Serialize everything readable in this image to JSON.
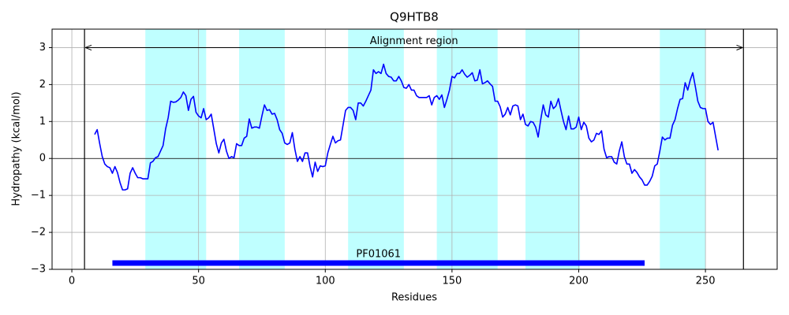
{
  "chart_data": {
    "type": "line",
    "title": "Q9HTB8",
    "xlabel": "Residues",
    "ylabel": "Hydropathy (kcal/mol)",
    "xlim": [
      -7.8,
      278.3
    ],
    "ylim": [
      -3,
      3.5
    ],
    "xticks": [
      0,
      50,
      100,
      150,
      200,
      250
    ],
    "yticks": [
      {
        "value": -3,
        "label": "−3"
      },
      {
        "value": -2,
        "label": "−2"
      },
      {
        "value": -1,
        "label": "−1"
      },
      0,
      1,
      2,
      3
    ],
    "grid": true,
    "color": "#0000ff",
    "region_color": "#bfffff",
    "hline": 0,
    "regions": [
      [
        29,
        53
      ],
      [
        66,
        84
      ],
      [
        109,
        131
      ],
      [
        144,
        168
      ],
      [
        179,
        200.5
      ],
      [
        232,
        250
      ]
    ],
    "alignment": {
      "label": "Alignment region",
      "start": 5,
      "end": 265,
      "y": 3
    },
    "domains": [
      {
        "label": "PF01061",
        "start": 16,
        "end": 226,
        "y": -2.83,
        "color": "#0000ff"
      }
    ],
    "x": [
      9,
      10,
      11,
      12,
      13,
      14,
      15,
      16,
      17,
      18,
      19,
      20,
      21,
      22,
      23,
      24,
      25,
      26,
      27,
      28,
      29,
      30,
      31,
      32,
      33,
      34,
      35,
      36,
      37,
      38,
      39,
      40,
      41,
      42,
      43,
      44,
      45,
      46,
      47,
      48,
      49,
      50,
      51,
      52,
      53,
      54,
      55,
      56,
      57,
      58,
      59,
      60,
      61,
      62,
      63,
      64,
      65,
      66,
      67,
      68,
      69,
      70,
      71,
      72,
      73,
      74,
      75,
      76,
      77,
      78,
      79,
      80,
      81,
      82,
      83,
      84,
      85,
      86,
      87,
      88,
      89,
      90,
      91,
      92,
      93,
      94,
      95,
      96,
      97,
      98,
      99,
      100,
      101,
      102,
      103,
      104,
      105,
      106,
      107,
      108,
      109,
      110,
      111,
      112,
      113,
      114,
      115,
      116,
      117,
      118,
      119,
      120,
      121,
      122,
      123,
      124,
      125,
      126,
      127,
      128,
      129,
      130,
      131,
      132,
      133,
      134,
      135,
      136,
      137,
      138,
      139,
      140,
      141,
      142,
      143,
      144,
      145,
      146,
      147,
      148,
      149,
      150,
      151,
      152,
      153,
      154,
      155,
      156,
      157,
      158,
      159,
      160,
      161,
      162,
      163,
      164,
      165,
      166,
      167,
      168,
      169,
      170,
      171,
      172,
      173,
      174,
      175,
      176,
      177,
      178,
      179,
      180,
      181,
      182,
      183,
      184,
      185,
      186,
      187,
      188,
      189,
      190,
      191,
      192,
      193,
      194,
      195,
      196,
      197,
      198,
      199,
      200,
      201,
      202,
      203,
      204,
      205,
      206,
      207,
      208,
      209,
      210,
      211,
      212,
      213,
      214,
      215,
      216,
      217,
      218,
      219,
      220,
      221,
      222,
      223,
      224,
      225,
      226,
      227,
      228,
      229,
      230,
      231,
      232,
      233,
      234,
      235,
      236,
      237,
      238,
      239,
      240,
      241,
      242,
      243,
      244,
      245,
      246,
      247,
      248,
      249,
      250,
      251,
      252,
      253,
      254,
      255
    ],
    "values": [
      0.65,
      0.78,
      0.4,
      0.05,
      -0.15,
      -0.22,
      -0.25,
      -0.4,
      -0.22,
      -0.38,
      -0.65,
      -0.85,
      -0.85,
      -0.82,
      -0.4,
      -0.25,
      -0.4,
      -0.52,
      -0.52,
      -0.55,
      -0.55,
      -0.55,
      -0.12,
      -0.08,
      0.02,
      0.05,
      0.2,
      0.35,
      0.8,
      1.1,
      1.55,
      1.52,
      1.53,
      1.58,
      1.65,
      1.8,
      1.7,
      1.3,
      1.6,
      1.68,
      1.25,
      1.15,
      1.1,
      1.35,
      1.05,
      1.1,
      1.2,
      0.8,
      0.4,
      0.15,
      0.42,
      0.52,
      0.2,
      0.0,
      0.05,
      0.02,
      0.4,
      0.35,
      0.35,
      0.55,
      0.6,
      1.07,
      0.82,
      0.85,
      0.85,
      0.82,
      1.15,
      1.45,
      1.3,
      1.32,
      1.2,
      1.22,
      1.05,
      0.78,
      0.68,
      0.42,
      0.38,
      0.42,
      0.7,
      0.25,
      -0.08,
      0.05,
      -0.08,
      0.15,
      0.15,
      -0.22,
      -0.5,
      -0.1,
      -0.35,
      -0.2,
      -0.22,
      -0.2,
      0.15,
      0.38,
      0.6,
      0.42,
      0.48,
      0.5,
      0.9,
      1.3,
      1.38,
      1.38,
      1.3,
      1.05,
      1.5,
      1.5,
      1.42,
      1.55,
      1.7,
      1.85,
      2.4,
      2.3,
      2.35,
      2.3,
      2.55,
      2.3,
      2.22,
      2.2,
      2.1,
      2.1,
      2.22,
      2.1,
      1.92,
      1.9,
      2.0,
      1.85,
      1.85,
      1.7,
      1.65,
      1.65,
      1.65,
      1.65,
      1.7,
      1.45,
      1.65,
      1.7,
      1.6,
      1.72,
      1.38,
      1.6,
      1.85,
      2.22,
      2.18,
      2.3,
      2.3,
      2.4,
      2.28,
      2.2,
      2.25,
      2.32,
      2.1,
      2.12,
      2.4,
      2.02,
      2.05,
      2.1,
      2.02,
      1.95,
      1.55,
      1.55,
      1.4,
      1.12,
      1.2,
      1.38,
      1.18,
      1.42,
      1.45,
      1.42,
      1.05,
      1.2,
      0.92,
      0.88,
      1.0,
      0.98,
      0.85,
      0.58,
      1.05,
      1.45,
      1.18,
      1.12,
      1.55,
      1.35,
      1.42,
      1.62,
      1.3,
      1.0,
      0.78,
      1.15,
      0.8,
      0.8,
      0.85,
      1.12,
      0.78,
      0.98,
      0.88,
      0.55,
      0.45,
      0.5,
      0.68,
      0.65,
      0.75,
      0.25,
      0.02,
      0.05,
      0.05,
      -0.1,
      -0.15,
      0.2,
      0.45,
      0.05,
      -0.15,
      -0.15,
      -0.4,
      -0.3,
      -0.38,
      -0.5,
      -0.58,
      -0.72,
      -0.72,
      -0.62,
      -0.48,
      -0.2,
      -0.15,
      0.2,
      0.58,
      0.5,
      0.55,
      0.55,
      0.9,
      1.05,
      1.35,
      1.6,
      1.62,
      2.05,
      1.85,
      2.12,
      2.32,
      1.95,
      1.55,
      1.38,
      1.35,
      1.35,
      1.0,
      0.92,
      0.98,
      0.6,
      0.22
    ]
  }
}
